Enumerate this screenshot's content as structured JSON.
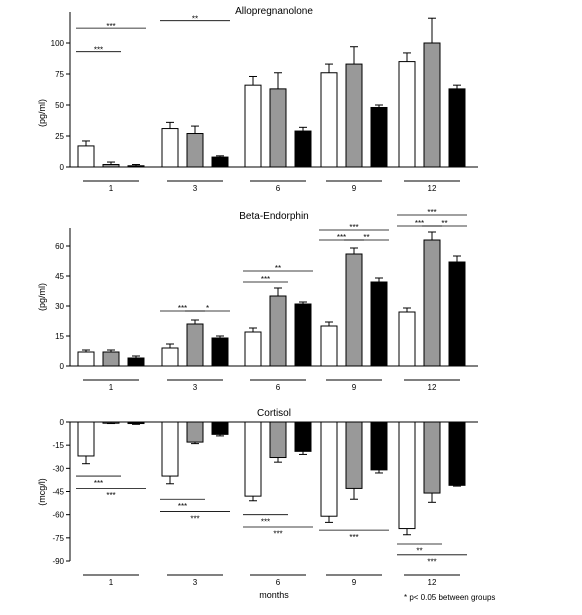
{
  "chart_data": [
    {
      "type": "bar",
      "title": "Allopregnanolone",
      "ylabel": "(pg/ml)",
      "ylim": [
        0,
        125
      ],
      "yticks": [
        0,
        25,
        50,
        75,
        100
      ],
      "categories": [
        "1",
        "3",
        "6",
        "9",
        "12"
      ],
      "series": [
        {
          "color": "#ffffff",
          "values": [
            17,
            31,
            66,
            76,
            85
          ],
          "errors": [
            4,
            5,
            7,
            7,
            7
          ]
        },
        {
          "color": "#999999",
          "values": [
            2,
            27,
            63,
            83,
            100
          ],
          "errors": [
            2,
            6,
            13,
            14,
            20
          ]
        },
        {
          "color": "#000000",
          "values": [
            1,
            8,
            29,
            48,
            63
          ],
          "errors": [
            1,
            1,
            3,
            2,
            3
          ]
        }
      ],
      "significance": [
        {
          "label": "***",
          "group": 0,
          "from": 0,
          "to": 2,
          "value": 112,
          "text_value": 113
        },
        {
          "label": "***",
          "group": 0,
          "from": 0,
          "to": 1,
          "value": 93,
          "text_value": 94
        },
        {
          "label": "**",
          "group": 1,
          "from": 0,
          "to": 2,
          "value": 118,
          "text_value": 119
        },
        {
          "label": "**",
          "group": 2,
          "from": 0,
          "to": 2,
          "value": 152,
          "text_value": 153
        },
        {
          "label": "*",
          "group": 3,
          "from": 0,
          "to": 2,
          "value": 198,
          "text_value": 199
        },
        {
          "label": "*",
          "group": 3,
          "from": 1,
          "to": 2,
          "value": 181,
          "text_value": 182
        },
        {
          "label": "*",
          "group": 4,
          "from": 0,
          "to": 2,
          "value": 251,
          "text_value": 252
        },
        {
          "label": "*",
          "group": 4,
          "from": 1,
          "to": 2,
          "value": 236,
          "text_value": 237
        }
      ]
    },
    {
      "type": "bar",
      "title": "Beta-Endorphin",
      "ylabel": "(pg/ml)",
      "ylim": [
        0,
        69
      ],
      "yticks": [
        0,
        15,
        30,
        45,
        60
      ],
      "categories": [
        "1",
        "3",
        "6",
        "9",
        "12"
      ],
      "series": [
        {
          "color": "#ffffff",
          "values": [
            7,
            9,
            17,
            20,
            27
          ],
          "errors": [
            1,
            2,
            2,
            2,
            2
          ]
        },
        {
          "color": "#999999",
          "values": [
            7,
            21,
            35,
            56,
            63
          ],
          "errors": [
            1,
            2,
            4,
            3,
            4
          ]
        },
        {
          "color": "#000000",
          "values": [
            4,
            14,
            31,
            42,
            52
          ],
          "errors": [
            1,
            1,
            1,
            2,
            3
          ]
        }
      ],
      "significance": [
        {
          "label": "***",
          "group": 1,
          "from": 0,
          "to": 1,
          "value": 27.5,
          "text_value": 28.5
        },
        {
          "label": "*",
          "group": 1,
          "from": 1,
          "to": 2,
          "value": 27.5,
          "text_value": 28.5
        },
        {
          "label": "**",
          "group": 2,
          "from": 0,
          "to": 2,
          "value": 47.5,
          "text_value": 48.5
        },
        {
          "label": "***",
          "group": 2,
          "from": 0,
          "to": 1,
          "value": 42,
          "text_value": 43
        },
        {
          "label": "***",
          "group": 3,
          "from": 0,
          "to": 2,
          "value": 68,
          "text_value": 69
        },
        {
          "label": "***",
          "group": 3,
          "from": 0,
          "to": 1,
          "value": 63,
          "text_value": 64
        },
        {
          "label": "**",
          "group": 3,
          "from": 1,
          "to": 2,
          "value": 63,
          "text_value": 64
        },
        {
          "label": "***",
          "group": 4,
          "from": 0,
          "to": 2,
          "value": 75.5,
          "text_value": 76.5
        },
        {
          "label": "***",
          "group": 4,
          "from": 0,
          "to": 1,
          "value": 70,
          "text_value": 71
        },
        {
          "label": "**",
          "group": 4,
          "from": 1,
          "to": 2,
          "value": 70,
          "text_value": 71
        }
      ]
    },
    {
      "type": "bar",
      "title": "Cortisol",
      "ylabel": "(mcg/l)",
      "xlabel": "months",
      "ylim": [
        -90,
        0
      ],
      "yticks": [
        0,
        -15,
        -30,
        -45,
        -60,
        -75,
        -90
      ],
      "categories": [
        "1",
        "3",
        "6",
        "9",
        "12"
      ],
      "series": [
        {
          "color": "#ffffff",
          "values": [
            -22,
            -35,
            -48,
            -61,
            -69
          ],
          "errors": [
            5,
            5,
            3,
            4,
            4
          ]
        },
        {
          "color": "#999999",
          "values": [
            -0.5,
            -13,
            -23,
            -43,
            -46
          ],
          "errors": [
            0.5,
            1,
            3,
            7,
            6
          ]
        },
        {
          "color": "#000000",
          "values": [
            -1,
            -8,
            -19,
            -31,
            -41
          ],
          "errors": [
            0.5,
            1,
            2,
            2,
            0.5
          ]
        }
      ],
      "significance": [
        {
          "label": "***",
          "group": 0,
          "from": 0,
          "to": 1,
          "value": -35,
          "text_value": -40
        },
        {
          "label": "***",
          "group": 0,
          "from": 0,
          "to": 2,
          "value": -43,
          "text_value": -48
        },
        {
          "label": "***",
          "group": 1,
          "from": 0,
          "to": 1,
          "value": -50,
          "text_value": -55
        },
        {
          "label": "***",
          "group": 1,
          "from": 0,
          "to": 2,
          "value": -58,
          "text_value": -63
        },
        {
          "label": "***",
          "group": 2,
          "from": 0,
          "to": 1,
          "value": -60,
          "text_value": -65
        },
        {
          "label": "***",
          "group": 2,
          "from": 0,
          "to": 2,
          "value": -68,
          "text_value": -73
        },
        {
          "label": "***",
          "group": 3,
          "from": 0,
          "to": 2,
          "value": -70,
          "text_value": -75
        },
        {
          "label": "**",
          "group": 4,
          "from": 0,
          "to": 1,
          "value": -79,
          "text_value": -84
        },
        {
          "label": "***",
          "group": 4,
          "from": 0,
          "to": 2,
          "value": -86,
          "text_value": -91
        }
      ]
    }
  ],
  "footnote": "* p< 0.05 between groups"
}
